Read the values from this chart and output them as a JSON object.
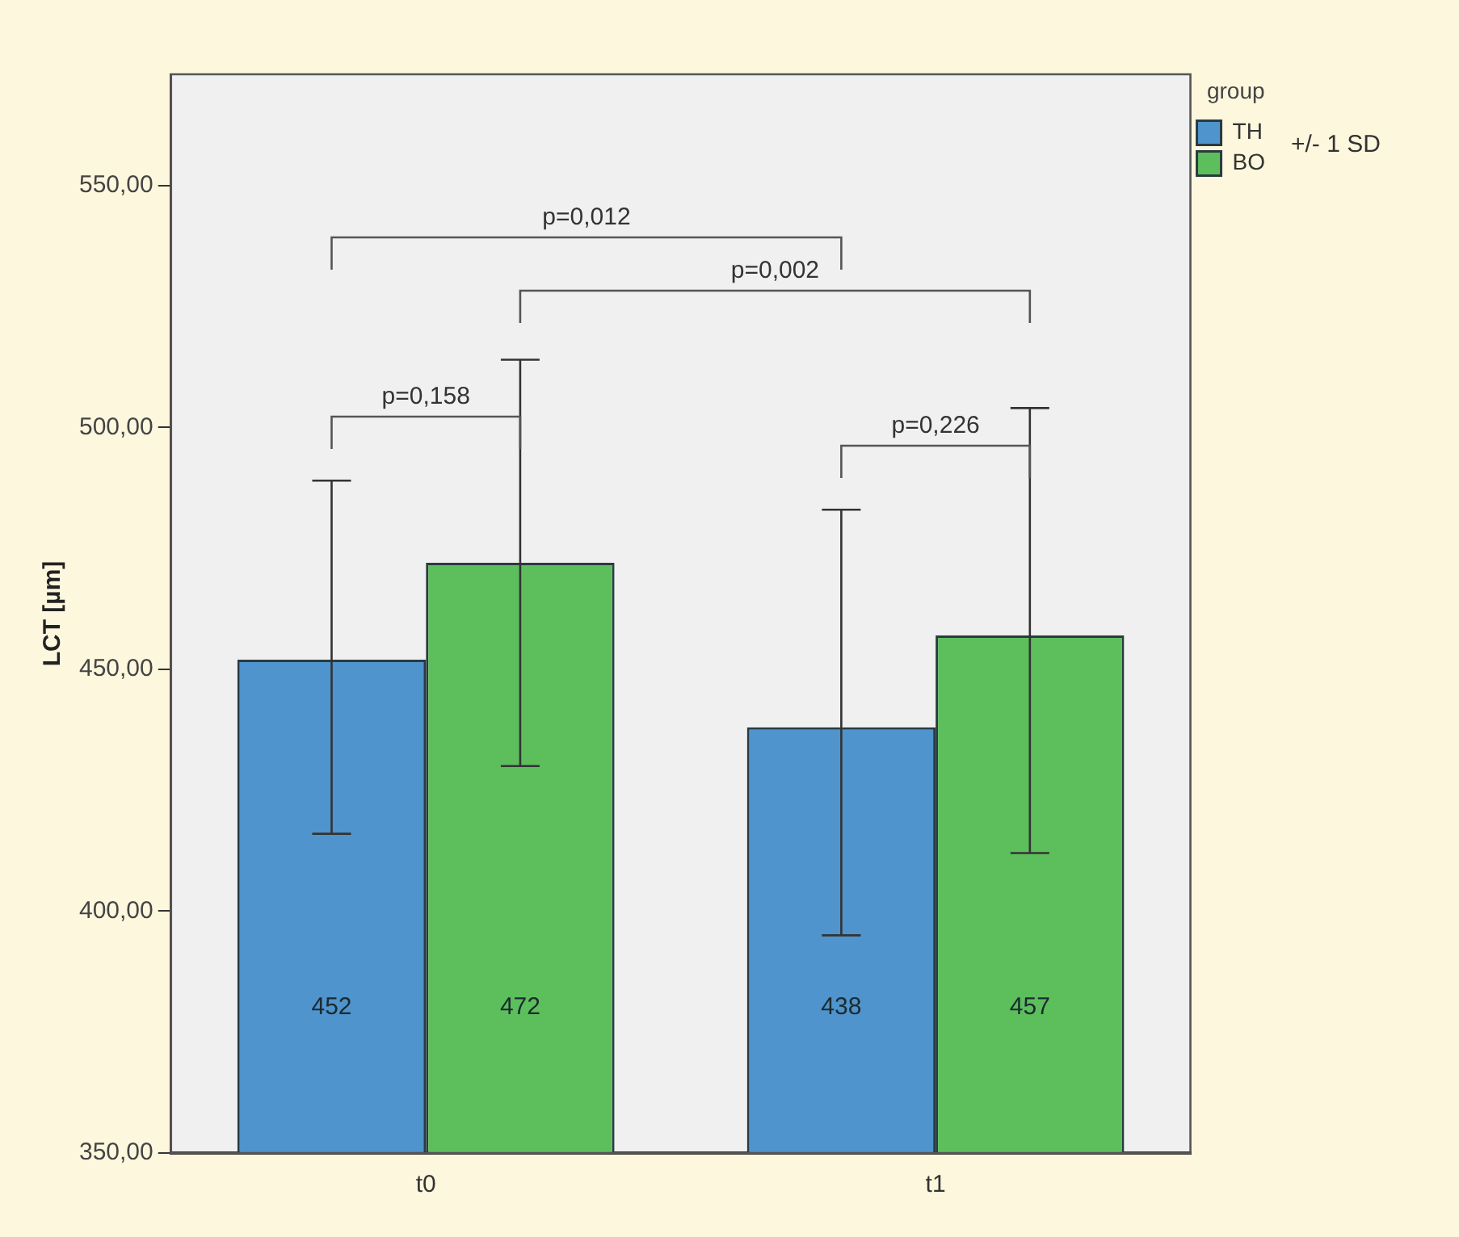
{
  "chart_data": {
    "type": "bar",
    "ylabel": "LCT [µm]",
    "legend_title": "group",
    "categories": [
      "t0",
      "t1"
    ],
    "series": [
      {
        "name": "TH",
        "color": "#4f94cc",
        "values": [
          452,
          438
        ],
        "errors": [
          [
            416,
            489
          ],
          [
            395,
            483
          ]
        ]
      },
      {
        "name": "BO",
        "color": "#5cbf5c",
        "values": [
          472,
          457
        ],
        "errors": [
          [
            430,
            514
          ],
          [
            412,
            504
          ]
        ]
      }
    ],
    "ylim": [
      350,
      573
    ],
    "yticks": [
      {
        "value": 350,
        "label": "350,00"
      },
      {
        "value": 400,
        "label": "400,00"
      },
      {
        "value": 450,
        "label": "450,00"
      },
      {
        "value": 500,
        "label": "500,00"
      },
      {
        "value": 550,
        "label": "550,00"
      }
    ],
    "data_labels": true,
    "legend": "top right",
    "grid": false,
    "annotations": [
      "p=0,012",
      "p=0,002",
      "p=0,158",
      "p=0,226",
      "+/- 1 SD"
    ]
  }
}
